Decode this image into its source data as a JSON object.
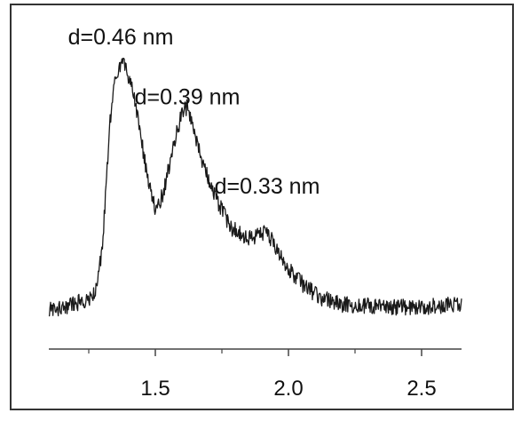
{
  "chart_data": {
    "type": "line",
    "title": "",
    "xlabel": "",
    "ylabel": "",
    "xlim": [
      1.1,
      2.65
    ],
    "ylim": [
      0,
      1
    ],
    "grid": false,
    "legend": "none",
    "line_color": "#1a1a1a",
    "frame_color": "#333333",
    "x_ticks_major": [
      1.5,
      2.0,
      2.5
    ],
    "x_tick_labels": [
      "1.5",
      "2.0",
      "2.5"
    ],
    "x_ticks_minor": [
      1.25,
      1.75,
      2.25
    ],
    "annotations": [
      {
        "text": "d=0.46 nm",
        "x": 1.37,
        "y": 0.97
      },
      {
        "text": "d=0.39 nm",
        "x": 1.62,
        "y": 0.77
      },
      {
        "text": "d=0.33 nm",
        "x": 1.92,
        "y": 0.47
      }
    ],
    "series": [
      {
        "x": [
          1.1,
          1.2,
          1.27,
          1.3,
          1.33,
          1.35,
          1.38,
          1.42,
          1.46,
          1.5,
          1.53,
          1.57,
          1.6,
          1.62,
          1.64,
          1.67,
          1.72,
          1.78,
          1.85,
          1.92,
          1.96,
          2.0,
          2.05,
          2.12,
          2.2,
          2.35,
          2.5,
          2.65
        ],
        "y": [
          0.08,
          0.1,
          0.13,
          0.28,
          0.71,
          0.86,
          0.92,
          0.8,
          0.58,
          0.41,
          0.47,
          0.64,
          0.74,
          0.76,
          0.71,
          0.59,
          0.47,
          0.36,
          0.32,
          0.34,
          0.28,
          0.22,
          0.17,
          0.12,
          0.1,
          0.09,
          0.09,
          0.1
        ]
      }
    ]
  }
}
